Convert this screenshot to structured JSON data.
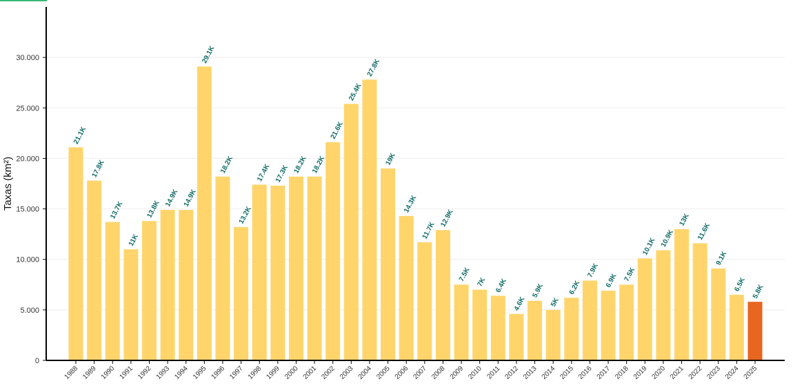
{
  "chart_data": {
    "type": "bar",
    "y_label": "Taxas (km²)",
    "categories": [
      "1988",
      "1989",
      "1990",
      "1991",
      "1992",
      "1993",
      "1994",
      "1995",
      "1996",
      "1997",
      "1998",
      "1999",
      "2000",
      "2001",
      "2002",
      "2003",
      "2004",
      "2005",
      "2006",
      "2007",
      "2008",
      "2009",
      "2010",
      "2011",
      "2012",
      "2013",
      "2014",
      "2015",
      "2016",
      "2017",
      "2018",
      "2019",
      "2020",
      "2021",
      "2022",
      "2023",
      "2024",
      "2025"
    ],
    "values": [
      21100,
      17800,
      13700,
      11000,
      13800,
      14900,
      14900,
      29100,
      18200,
      13200,
      17400,
      17300,
      18200,
      18200,
      21600,
      25400,
      27800,
      19000,
      14300,
      11700,
      12900,
      7500,
      7000,
      6400,
      4600,
      5900,
      5000,
      6200,
      7900,
      6900,
      7500,
      10100,
      10900,
      13000,
      11600,
      9100,
      6500,
      5800
    ],
    "value_labels": [
      "21.1K",
      "17.8K",
      "13.7K",
      "11K",
      "13.8K",
      "14.9K",
      "14.9K",
      "29.1K",
      "18.2K",
      "13.2K",
      "17.4K",
      "17.3K",
      "18.2K",
      "18.2K",
      "21.6K",
      "25.4K",
      "27.8K",
      "19K",
      "14.3K",
      "11.7K",
      "12.9K",
      "7.5K",
      "7K",
      "6.4K",
      "4.6K",
      "5.9K",
      "5K",
      "6.2K",
      "7.9K",
      "6.9K",
      "7.5K",
      "10.1K",
      "10.9K",
      "13K",
      "11.6K",
      "9.1K",
      "6.5K",
      "5.8K"
    ],
    "colors": [
      "#ffd56b",
      "#ffd56b",
      "#ffd56b",
      "#ffd56b",
      "#ffd56b",
      "#ffd56b",
      "#ffd56b",
      "#ffd56b",
      "#ffd56b",
      "#ffd56b",
      "#ffd56b",
      "#ffd56b",
      "#ffd56b",
      "#ffd56b",
      "#ffd56b",
      "#ffd56b",
      "#ffd56b",
      "#ffd56b",
      "#ffd56b",
      "#ffd56b",
      "#ffd56b",
      "#ffd56b",
      "#ffd56b",
      "#ffd56b",
      "#ffd56b",
      "#ffd56b",
      "#ffd56b",
      "#ffd56b",
      "#ffd56b",
      "#ffd56b",
      "#ffd56b",
      "#ffd56b",
      "#ffd56b",
      "#ffd56b",
      "#ffd56b",
      "#ffd56b",
      "#ffd56b",
      "#e8661f"
    ],
    "label_color": "#0f6b66",
    "ylim": [
      0,
      35000
    ],
    "yticks": [
      0,
      {
        "value": 5000,
        "label": "5.000"
      },
      {
        "value": 10000,
        "label": "10.000"
      },
      {
        "value": 15000,
        "label": "15.000"
      },
      {
        "value": 20000,
        "label": "20.000"
      },
      {
        "value": 25000,
        "label": "25.000"
      },
      {
        "value": 30000,
        "label": "30.000"
      }
    ],
    "grid": true
  }
}
